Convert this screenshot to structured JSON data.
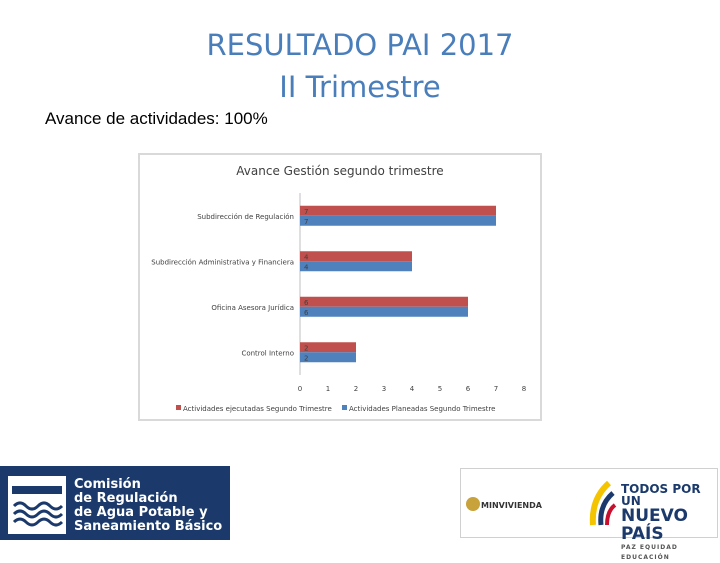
{
  "header": {
    "title_line1": "RESULTADO PAI 2017",
    "title_line2": "II Trimestre",
    "subtitle": "Avance de actividades: 100%"
  },
  "chart_data": {
    "type": "bar",
    "orientation": "horizontal",
    "title": "Avance Gestión segundo trimestre",
    "categories": [
      "Subdirección de Regulación",
      "Subdirección Administrativa y Financiera",
      "Oficina Asesora Jurídica",
      "Control Interno"
    ],
    "series": [
      {
        "name": "Actividades ejecutadas Segundo Trimestre",
        "values": [
          7,
          4,
          6,
          2
        ],
        "color": "#c0504d"
      },
      {
        "name": "Actividades Planeadas Segundo Trimestre",
        "values": [
          7,
          4,
          6,
          2
        ],
        "color": "#4f81bd"
      }
    ],
    "xlim": [
      0,
      8
    ],
    "xticks": [
      0,
      1,
      2,
      3,
      4,
      5,
      6,
      7,
      8
    ],
    "legend": "bottom",
    "grid": false
  },
  "footer": {
    "org_line1": "Comisión",
    "org_line2": "de Regulación",
    "org_line3": "de Agua Potable y",
    "org_line4": "Saneamiento Básico",
    "ministry": "MINVIVIENDA",
    "gov_line1": "TODOS POR UN",
    "gov_line2": "NUEVO PAÍS",
    "gov_line3": "PAZ EQUIDAD EDUCACIÓN",
    "colors": {
      "brand_blue": "#1b3a6b",
      "title_blue": "#4a7ebb"
    }
  }
}
